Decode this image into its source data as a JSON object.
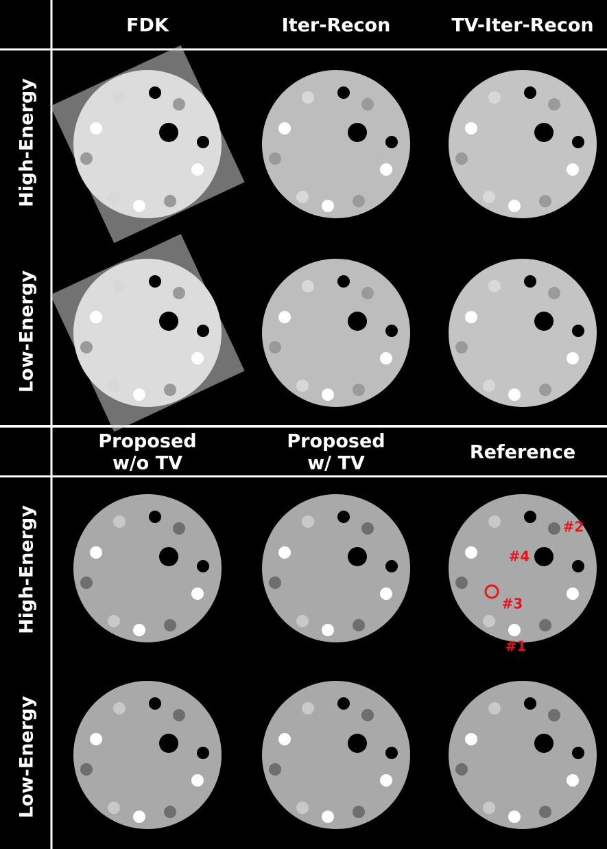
{
  "top_headers": [
    "FDK",
    "Iter-Recon",
    "TV-Iter-Recon"
  ],
  "top_rows": [
    "High-Energy",
    "Low-Energy"
  ],
  "bottom_headers": [
    [
      "Proposed",
      "w/o TV"
    ],
    [
      "Proposed",
      "w/ TV"
    ],
    [
      "Reference"
    ]
  ],
  "bottom_rows": [
    "High-Energy",
    "Low-Energy"
  ],
  "annotations": [
    "#1",
    "#2",
    "#3",
    "#4"
  ]
}
